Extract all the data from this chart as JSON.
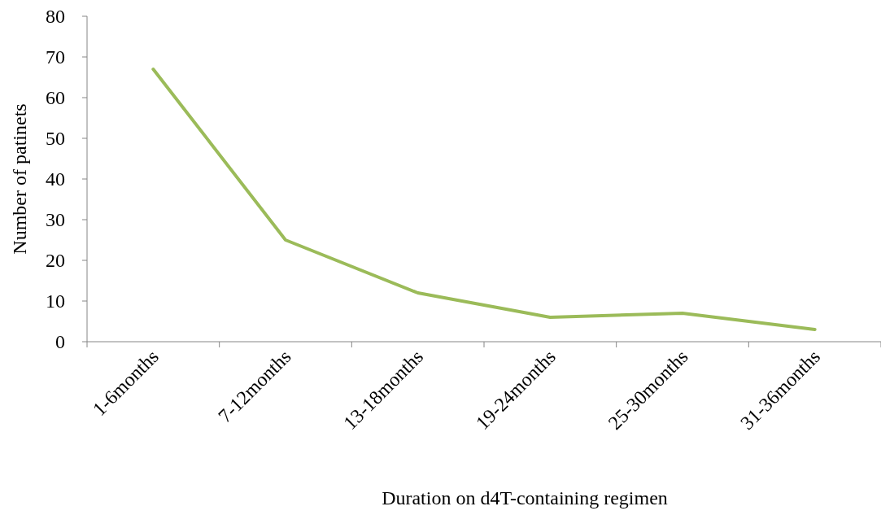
{
  "chart_data": {
    "type": "line",
    "xlabel": "Duration on d4T-containing regimen",
    "ylabel": "Number of patinets",
    "categories": [
      "1-6months",
      "7-12months",
      "13-18months",
      "19-24months",
      "25-30months",
      "31-36months"
    ],
    "series": [
      {
        "color": "#9bbb59",
        "values": [
          67,
          25,
          12,
          6,
          7,
          3
        ]
      }
    ],
    "ylim": [
      0,
      80
    ],
    "yticks": [
      0,
      10,
      20,
      30,
      40,
      50,
      60,
      70,
      80
    ],
    "grid": false,
    "marker": "none",
    "line_style": "solid"
  }
}
